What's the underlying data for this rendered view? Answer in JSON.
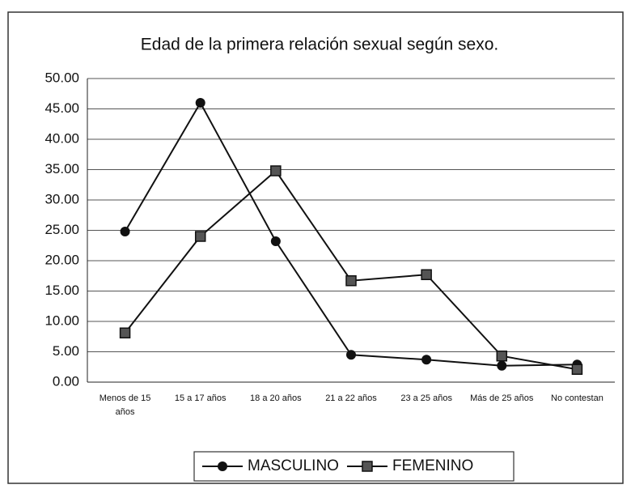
{
  "chart_data": {
    "type": "line",
    "title": "Edad de la primera relación sexual según sexo.",
    "categories": [
      "Menos de 15 años",
      "15 a 17 años",
      "18 a 20 años",
      "21 a 22 años",
      "23 a 25 años",
      "Más de 25 años",
      "No contestan"
    ],
    "series": [
      {
        "name": "MASCULINO",
        "color": "#111111",
        "marker": "circle",
        "values": [
          24.8,
          46.0,
          23.2,
          4.5,
          3.7,
          2.7,
          2.9
        ]
      },
      {
        "name": "FEMENINO",
        "color": "#111111",
        "marker": "square",
        "values": [
          8.1,
          24.0,
          34.8,
          16.7,
          17.7,
          4.3,
          2.1
        ]
      }
    ],
    "ylim": [
      0,
      50
    ],
    "yticks": [
      {
        "value": 0,
        "label": "0.00"
      },
      {
        "value": 5,
        "label": "5.00"
      },
      {
        "value": 10,
        "label": "10.00"
      },
      {
        "value": 15,
        "label": "15.00"
      },
      {
        "value": 20,
        "label": "20.00"
      },
      {
        "value": 25,
        "label": "25.00"
      },
      {
        "value": 30,
        "label": "30.00"
      },
      {
        "value": 35,
        "label": "35.00"
      },
      {
        "value": 40,
        "label": "40.00"
      },
      {
        "value": 45,
        "label": "45.00"
      },
      {
        "value": 50,
        "label": "50.00"
      }
    ],
    "grid": true,
    "legend": "bottom"
  }
}
